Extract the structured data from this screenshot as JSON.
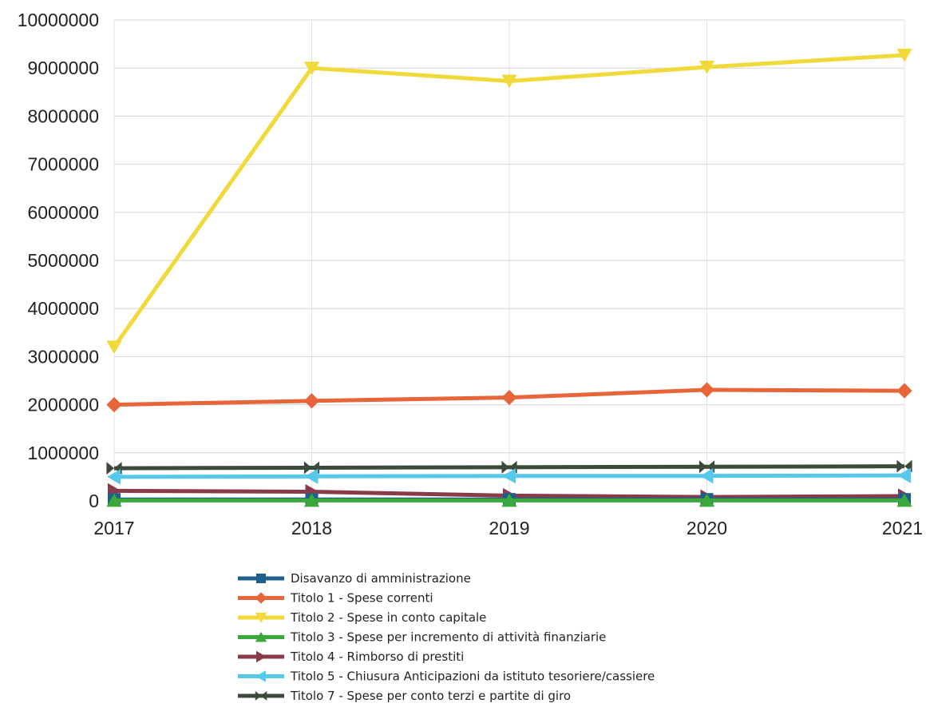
{
  "chart_data": {
    "type": "line",
    "title": "",
    "xlabel": "",
    "ylabel": "",
    "x": [
      "2017",
      "2018",
      "2019",
      "2020",
      "2021"
    ],
    "ylim": [
      0,
      10000000
    ],
    "yticks": [
      "0",
      "1000000",
      "2000000",
      "3000000",
      "4000000",
      "5000000",
      "6000000",
      "7000000",
      "8000000",
      "9000000",
      "10000000"
    ],
    "grid": true,
    "legend_position": "bottom",
    "series": [
      {
        "name": "Disavanzo di amministrazione",
        "color": "#1f5f8b",
        "marker": "square",
        "values": [
          30000,
          30000,
          30000,
          30000,
          30000
        ]
      },
      {
        "name": "Titolo 1 - Spese correnti",
        "color": "#e8653a",
        "marker": "diamond",
        "values": [
          2000000,
          2080000,
          2150000,
          2310000,
          2290000
        ]
      },
      {
        "name": "Titolo 2 - Spese in conto capitale",
        "color": "#f2d93a",
        "marker": "triangle-down",
        "values": [
          3200000,
          9000000,
          8730000,
          9020000,
          9270000
        ]
      },
      {
        "name": "Titolo 3 - Spese per incremento di attività finanziarie",
        "color": "#3aa83a",
        "marker": "triangle-up",
        "values": [
          10000,
          10000,
          10000,
          10000,
          10000
        ]
      },
      {
        "name": "Titolo 4 - Rimborso di prestiti",
        "color": "#8b3a4a",
        "marker": "triangle-right",
        "values": [
          210000,
          190000,
          110000,
          80000,
          100000
        ]
      },
      {
        "name": "Titolo 5 - Chiusura Anticipazioni da istituto tesoriere/cassiere",
        "color": "#56c8ec",
        "marker": "triangle-left",
        "values": [
          500000,
          510000,
          520000,
          520000,
          530000
        ]
      },
      {
        "name": "Titolo 7 - Spese per conto terzi e partite di giro",
        "color": "#3c4a3c",
        "marker": "bowtie",
        "values": [
          680000,
          690000,
          700000,
          710000,
          720000
        ]
      }
    ]
  }
}
